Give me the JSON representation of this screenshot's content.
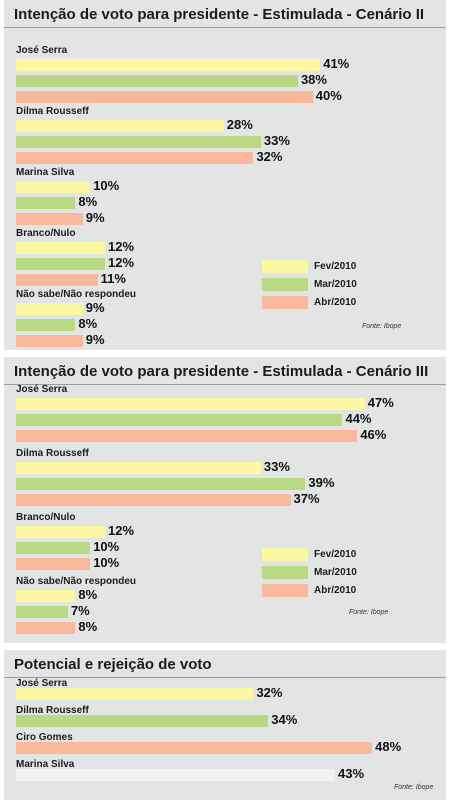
{
  "colors": {
    "panel_bg": "#e3e5e4",
    "fev": "#fcf7a2",
    "mar": "#b9d883",
    "abr": "#f7b89b",
    "gray": "#f0f2f1"
  },
  "chart_data": [
    {
      "type": "bar",
      "orientation": "horizontal",
      "title": "Intenção de voto para presidente - Estimulada - Cenário II",
      "categories": [
        "José Serra",
        "Dilma Rousseff",
        "Marina Silva",
        "Branco/Nulo",
        "Não sabe/Não respondeu"
      ],
      "series": [
        {
          "name": "Fev/2010",
          "values": [
            41,
            28,
            10,
            12,
            9
          ],
          "labels": [
            "41%",
            "28%",
            "10%",
            "12%",
            "9%"
          ]
        },
        {
          "name": "Mar/2010",
          "values": [
            38,
            33,
            8,
            12,
            8
          ],
          "labels": [
            "38%",
            "33%",
            "8%",
            "12%",
            "8%"
          ]
        },
        {
          "name": "Abr/2010",
          "values": [
            40,
            32,
            9,
            11,
            9
          ],
          "labels": [
            "40%",
            "32%",
            "9%",
            "11%",
            "9%"
          ]
        }
      ],
      "legend_position": "bottom-right",
      "source": "Fonte: Ibope"
    },
    {
      "type": "bar",
      "orientation": "horizontal",
      "title": "Intenção de voto para presidente - Estimulada - Cenário III",
      "categories": [
        "José Serra",
        "Dilma Rousseff",
        "Branco/Nulo",
        "Não sabe/Não respondeu"
      ],
      "series": [
        {
          "name": "Fev/2010",
          "values": [
            47,
            33,
            12,
            8
          ],
          "labels": [
            "47%",
            "33%",
            "12%",
            "8%"
          ]
        },
        {
          "name": "Mar/2010",
          "values": [
            44,
            39,
            10,
            7
          ],
          "labels": [
            "44%",
            "39%",
            "10%",
            "7%"
          ]
        },
        {
          "name": "Abr/2010",
          "values": [
            46,
            37,
            10,
            8
          ],
          "labels": [
            "46%",
            "37%",
            "10%",
            "8%"
          ]
        }
      ],
      "legend_position": "bottom-right",
      "source": "Fonte: Ibope"
    },
    {
      "type": "bar",
      "orientation": "horizontal",
      "title": "Potencial e rejeição de voto",
      "categories": [
        "José Serra",
        "Dilma Rousseff",
        "Ciro Gomes",
        "Marina Silva"
      ],
      "values": [
        32,
        34,
        48,
        43
      ],
      "labels": [
        "32%",
        "34%",
        "48%",
        "43%"
      ],
      "bar_colors": [
        "#fcf7a2",
        "#b9d883",
        "#f7b89b",
        "#f0f2f1"
      ],
      "source": "Fonte: Ibope"
    }
  ]
}
